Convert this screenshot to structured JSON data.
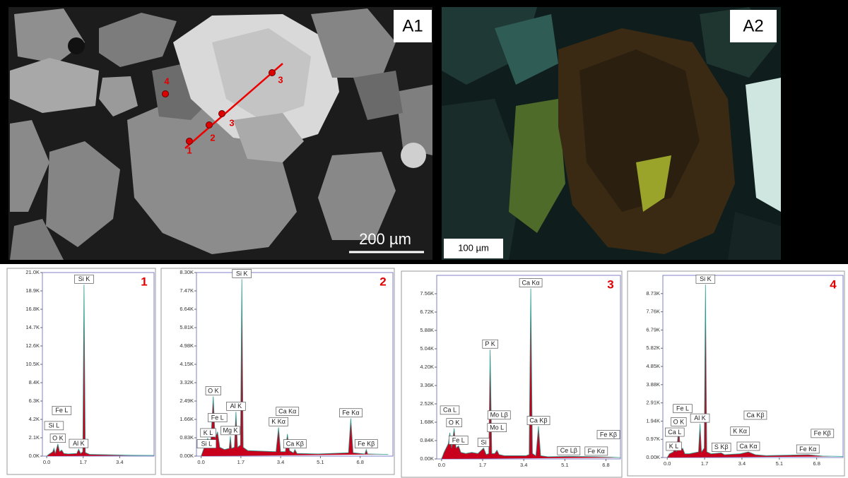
{
  "figure": {
    "a1": {
      "label": "A1",
      "scale": "200 µm",
      "points": [
        "1",
        "2",
        "3",
        "3",
        "4"
      ]
    },
    "a2": {
      "label": "A2",
      "scale": "100 µm"
    }
  },
  "chart_data": [
    {
      "type": "line",
      "panel_label": "1",
      "color": "#c8001e",
      "line_color": "#2a9d8f",
      "x": [
        0,
        0.1,
        0.28,
        0.34,
        0.4,
        0.52,
        0.6,
        0.7,
        0.8,
        1.0,
        1.4,
        1.49,
        1.58,
        1.68,
        1.74,
        1.8,
        2.0,
        3.0,
        4.0,
        5.0
      ],
      "values": [
        0,
        200,
        500,
        900,
        300,
        1400,
        500,
        700,
        300,
        250,
        300,
        800,
        300,
        500,
        19600,
        400,
        200,
        150,
        100,
        80
      ],
      "xlim": [
        -0.2,
        5.0
      ],
      "ylim": [
        0,
        21000
      ],
      "xticks": [
        {
          "value": 0,
          "label": "0.0"
        },
        1.7,
        3.4
      ],
      "yticks": [
        {
          "value": 0,
          "label": "0.0K"
        },
        {
          "value": 2100,
          "label": "2.1K"
        },
        {
          "value": 4200,
          "label": "4.2K"
        },
        {
          "value": 6300,
          "label": "6.3K"
        },
        {
          "value": 8400,
          "label": "8.4K"
        },
        {
          "value": 10500,
          "label": "10.5K"
        },
        {
          "value": 12600,
          "label": "12.6K"
        },
        {
          "value": 14700,
          "label": "14.7K"
        },
        {
          "value": 16800,
          "label": "16.8K"
        },
        {
          "value": 18900,
          "label": "18.9K"
        },
        {
          "value": 21000,
          "label": "21.0K"
        }
      ],
      "peaks": [
        {
          "label": "Si K",
          "energy": 1.74
        },
        {
          "label": "O K",
          "energy": 0.52
        },
        {
          "label": "Si L",
          "energy": 0.34
        },
        {
          "label": "Fe L",
          "energy": 0.7
        },
        {
          "label": "Al K",
          "energy": 1.49
        }
      ]
    },
    {
      "type": "line",
      "panel_label": "2",
      "color": "#c8001e",
      "line_color": "#2a9d8f",
      "x": [
        0,
        0.1,
        0.28,
        0.4,
        0.52,
        0.6,
        0.7,
        0.8,
        1.0,
        1.2,
        1.25,
        1.3,
        1.42,
        1.49,
        1.56,
        1.68,
        1.74,
        1.8,
        2.0,
        3.2,
        3.31,
        3.4,
        3.6,
        3.69,
        3.78,
        3.95,
        4.01,
        4.1,
        5.0,
        6.3,
        6.4,
        6.5,
        7.0,
        7.06,
        7.12,
        8.0
      ],
      "values": [
        0,
        300,
        800,
        500,
        2700,
        800,
        1100,
        400,
        300,
        350,
        900,
        350,
        400,
        2000,
        400,
        500,
        8000,
        400,
        250,
        200,
        1300,
        200,
        200,
        1000,
        250,
        150,
        300,
        120,
        100,
        150,
        1700,
        150,
        100,
        300,
        100,
        80
      ],
      "xlim": [
        -0.2,
        8.2
      ],
      "ylim": [
        0,
        8300
      ],
      "xticks": [
        {
          "value": 0,
          "label": "0.0"
        },
        1.7,
        3.4,
        5.1,
        6.8
      ],
      "yticks": [
        {
          "value": 0,
          "label": "0.00K"
        },
        {
          "value": 830,
          "label": "0.83K"
        },
        {
          "value": 1660,
          "label": "1.66K"
        },
        {
          "value": 2490,
          "label": "2.49K"
        },
        {
          "value": 3320,
          "label": "3.32K"
        },
        {
          "value": 4150,
          "label": "4.15K"
        },
        {
          "value": 4980,
          "label": "4.98K"
        },
        {
          "value": 5810,
          "label": "5.81K"
        },
        {
          "value": 6640,
          "label": "6.64K"
        },
        {
          "value": 7470,
          "label": "7.47K"
        },
        {
          "value": 8300,
          "label": "8.30K"
        }
      ],
      "peaks": [
        {
          "label": "Si K",
          "energy": 1.74
        },
        {
          "label": "O K",
          "energy": 0.52
        },
        {
          "label": "K L",
          "energy": 0.3
        },
        {
          "label": "Al K",
          "energy": 1.49
        },
        {
          "label": "Mg K",
          "energy": 1.25
        },
        {
          "label": "Si L",
          "energy": 0.1
        },
        {
          "label": "Fe L",
          "energy": 0.7
        },
        {
          "label": "K Kα",
          "energy": 3.31
        },
        {
          "label": "Ca Kα",
          "energy": 3.69
        },
        {
          "label": "Ca Kβ",
          "energy": 4.01
        },
        {
          "label": "Fe Kα",
          "energy": 6.4
        },
        {
          "label": "Fe Kβ",
          "energy": 7.06
        }
      ]
    },
    {
      "type": "line",
      "panel_label": "3",
      "color": "#c8001e",
      "line_color": "#2a9d8f",
      "x": [
        0,
        0.1,
        0.28,
        0.34,
        0.42,
        0.52,
        0.6,
        0.7,
        0.8,
        1.0,
        1.25,
        1.5,
        1.74,
        1.85,
        1.95,
        2.01,
        2.08,
        2.2,
        2.29,
        2.38,
        2.6,
        3.5,
        3.62,
        3.69,
        3.76,
        3.9,
        4.01,
        4.1,
        4.4,
        5.26,
        6.4,
        7.06,
        7.4
      ],
      "values": [
        0,
        300,
        700,
        1200,
        500,
        1400,
        500,
        600,
        300,
        250,
        300,
        250,
        500,
        200,
        250,
        5000,
        250,
        250,
        400,
        200,
        150,
        150,
        200,
        7800,
        250,
        150,
        1500,
        150,
        100,
        120,
        100,
        80,
        60
      ],
      "xlim": [
        -0.2,
        7.4
      ],
      "ylim": [
        0,
        8400
      ],
      "xticks": [
        {
          "value": 0,
          "label": "0.0"
        },
        1.7,
        3.4,
        5.1,
        6.8
      ],
      "yticks": [
        {
          "value": 0,
          "label": "0.00K"
        },
        {
          "value": 840,
          "label": "0.84K"
        },
        {
          "value": 1680,
          "label": "1.68K"
        },
        {
          "value": 2520,
          "label": "2.52K"
        },
        {
          "value": 3360,
          "label": "3.36K"
        },
        {
          "value": 4200,
          "label": "4.20K"
        },
        {
          "value": 5040,
          "label": "5.04K"
        },
        {
          "value": 5880,
          "label": "5.88K"
        },
        {
          "value": 6720,
          "label": "6.72K"
        },
        {
          "value": 7560,
          "label": "7.56K"
        }
      ],
      "peaks": [
        {
          "label": "Ca Kα",
          "energy": 3.69
        },
        {
          "label": "P K",
          "energy": 2.01
        },
        {
          "label": "O K",
          "energy": 0.52
        },
        {
          "label": "Ca L",
          "energy": 0.34
        },
        {
          "label": "Fe L",
          "energy": 0.7
        },
        {
          "label": "Si",
          "energy": 1.74
        },
        {
          "label": "Mo L",
          "energy": 2.29
        },
        {
          "label": "Mo Lβ",
          "energy": 2.38
        },
        {
          "label": "Ca Kβ",
          "energy": 4.01
        },
        {
          "label": "Ce Lβ",
          "energy": 5.26
        },
        {
          "label": "Fe Kα",
          "energy": 6.4
        },
        {
          "label": "Fe Kβ",
          "energy": 7.06
        }
      ]
    },
    {
      "type": "line",
      "panel_label": "4",
      "color": "#c8001e",
      "line_color": "#2a9d8f",
      "x": [
        0,
        0.1,
        0.28,
        0.34,
        0.42,
        0.52,
        0.6,
        0.7,
        0.8,
        1.0,
        1.42,
        1.49,
        1.56,
        1.68,
        1.74,
        1.8,
        2.0,
        2.46,
        2.6,
        3.31,
        3.69,
        4.01,
        4.5,
        6.4,
        7.06,
        8.0
      ],
      "values": [
        0,
        200,
        300,
        600,
        300,
        1600,
        400,
        500,
        200,
        200,
        300,
        1800,
        300,
        500,
        9200,
        300,
        200,
        250,
        150,
        200,
        300,
        150,
        100,
        150,
        80,
        60
      ],
      "xlim": [
        -0.2,
        8.0
      ],
      "ylim": [
        0,
        9700
      ],
      "xticks": [
        {
          "value": 0,
          "label": "0.0"
        },
        1.7,
        3.4,
        5.1,
        6.8
      ],
      "yticks": [
        {
          "value": 0,
          "label": "0.00K"
        },
        {
          "value": 970,
          "label": "0.97K"
        },
        {
          "value": 1940,
          "label": "1.94K"
        },
        {
          "value": 2910,
          "label": "2.91K"
        },
        {
          "value": 3880,
          "label": "3.88K"
        },
        {
          "value": 4850,
          "label": "4.85K"
        },
        {
          "value": 5820,
          "label": "5.82K"
        },
        {
          "value": 6790,
          "label": "6.79K"
        },
        {
          "value": 7760,
          "label": "7.76K"
        },
        {
          "value": 8730,
          "label": "8.73K"
        }
      ],
      "peaks": [
        {
          "label": "Si K",
          "energy": 1.74
        },
        {
          "label": "O K",
          "energy": 0.52
        },
        {
          "label": "K L",
          "energy": 0.3
        },
        {
          "label": "Al K",
          "energy": 1.49
        },
        {
          "label": "Ca L",
          "energy": 0.34
        },
        {
          "label": "Fe L",
          "energy": 0.7
        },
        {
          "label": "S Kβ",
          "energy": 2.46
        },
        {
          "label": "K Kα",
          "energy": 3.31
        },
        {
          "label": "Ca Kα",
          "energy": 3.69
        },
        {
          "label": "Ca Kβ",
          "energy": 4.01
        },
        {
          "label": "Fe Kα",
          "energy": 6.4
        },
        {
          "label": "Fe Kβ",
          "energy": 7.06
        }
      ]
    }
  ]
}
